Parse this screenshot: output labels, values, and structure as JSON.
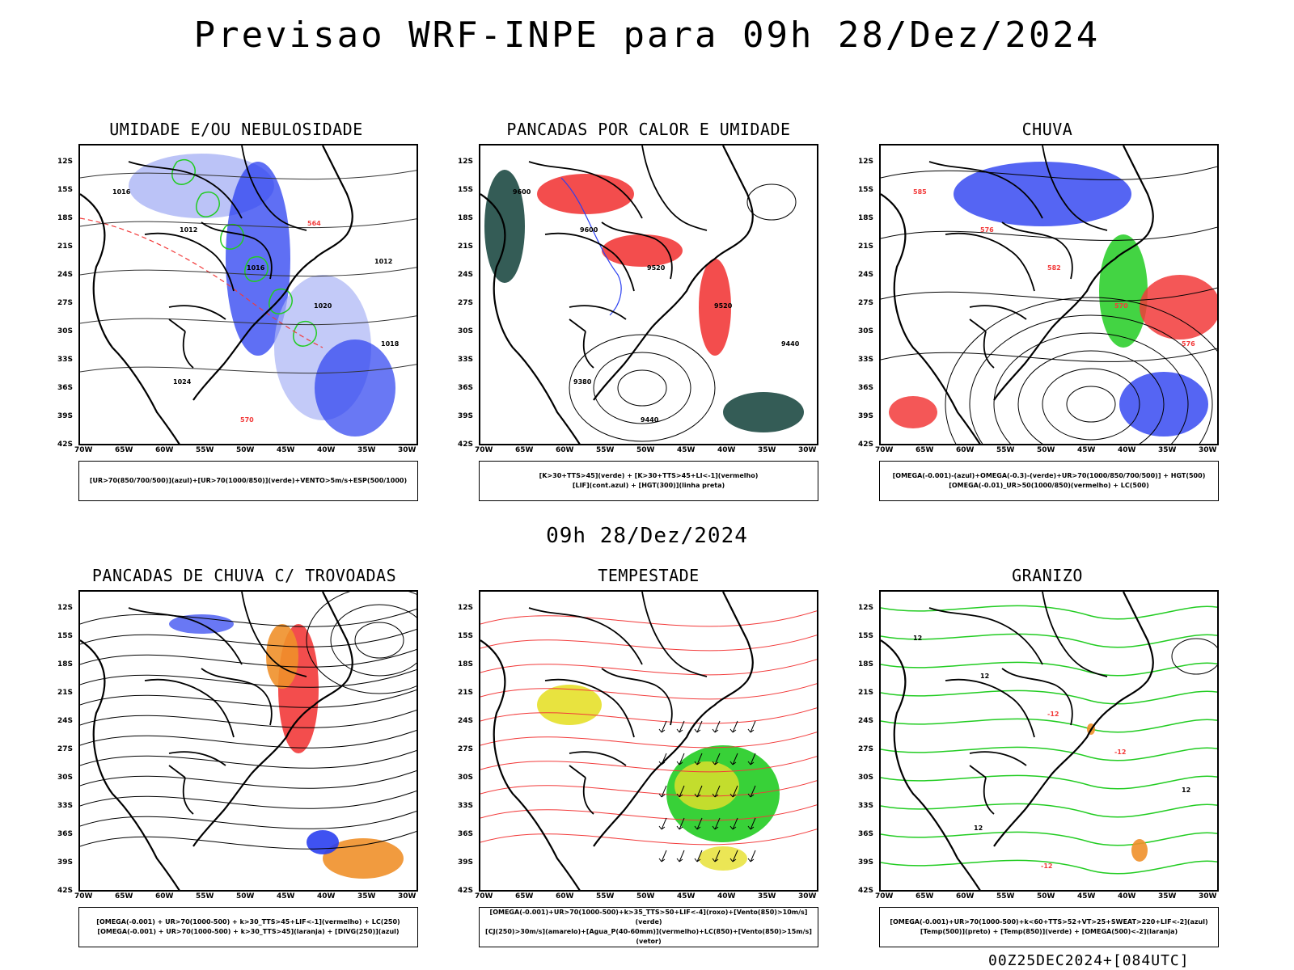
{
  "title": "Previsao WRF-INPE  para 09h 28/Dez/2024",
  "subtitle": "09h 28/Dez/2024",
  "footer": "00Z25DEC2024+[084UTC]",
  "axes": {
    "lat_labels": [
      "12S",
      "15S",
      "18S",
      "21S",
      "24S",
      "27S",
      "30S",
      "33S",
      "36S",
      "39S",
      "42S"
    ],
    "lon_labels": [
      "70W",
      "65W",
      "60W",
      "55W",
      "50W",
      "45W",
      "40W",
      "35W",
      "30W"
    ]
  },
  "colors": {
    "blue": "#2a3ff0",
    "light_blue": "#aab4f5",
    "green": "#22cc22",
    "red": "#f23a3a",
    "dark_teal": "#1e4a44",
    "orange": "#f0902a",
    "yellow": "#e6e02a"
  },
  "panels": [
    {
      "id": "umidade",
      "title": "UMIDADE E/OU NEBULOSIDADE",
      "legend": [
        "[UR>70(850/700/500)](azul)+[UR>70(1000/850)](verde)+VENTO>5m/s+ESP(500/1000)"
      ],
      "contour_labels": [
        "1016",
        "1012",
        "1016",
        "1020",
        "1018",
        "1024",
        "570",
        "564",
        "1012"
      ]
    },
    {
      "id": "pancadas_calor",
      "title": "PANCADAS POR CALOR E UMIDADE",
      "legend": [
        "[K>30+TTS>45](verde)  +  [K>30+TTS>45+LI<-1](vermelho)",
        "[LIF](cont.azul)  +  [HGT(300)](linha preta)"
      ],
      "contour_labels": [
        "9600",
        "9600",
        "9520",
        "9520",
        "9440",
        "9380",
        "9440"
      ]
    },
    {
      "id": "chuva",
      "title": "CHUVA",
      "legend": [
        "[OMEGA(-0.001)-(azul)+OMEGA(-0.3)-(verde)+UR>70(1000/850/700/500)]  +  HGT(500)",
        "[OMEGA(-0.01)_UR>50(1000/850)(vermelho)  +  LC(500)"
      ],
      "contour_labels": [
        "585",
        "576",
        "582",
        "570",
        "576"
      ]
    },
    {
      "id": "trovoadas",
      "title": "PANCADAS DE CHUVA C/ TROVOADAS",
      "legend": [
        "[OMEGA(-0.001)  +  UR>70(1000-500)  +  k>30_TTS>45+LIF<-1](vermelho)  +  LC(250)",
        "[OMEGA(-0.001)  +  UR>70(1000-500)  +  k>30_TTS>45](laranja)  +  [DIVG(250)](azul)"
      ],
      "contour_labels": []
    },
    {
      "id": "tempestade",
      "title": "TEMPESTADE",
      "legend": [
        "[OMEGA(-0.001)+UR>70(1000-500)+k>35_TTS>50+LIF<-4](roxo)+[Vento(850)>10m/s](verde)",
        "[CJ(250)>30m/s](amarelo)+[Agua_P(40-60mm)](vermelho)+LC(850)+[Vento(850)>15m/s](vetor)"
      ],
      "contour_labels": []
    },
    {
      "id": "granizo",
      "title": "GRANIZO",
      "legend": [
        "[OMEGA(-0.001)+UR>70(1000-500)+k<60+TTS>52+VT>25+SWEAT>220+LIF<-2](azul)",
        "[Temp(500)](preto)  +  [Temp(850)](verde)  +  [OMEGA(500)<-2](laranja)"
      ],
      "contour_labels": [
        "12",
        "12",
        "-12",
        "-12",
        "12",
        "12",
        "-12"
      ]
    }
  ]
}
